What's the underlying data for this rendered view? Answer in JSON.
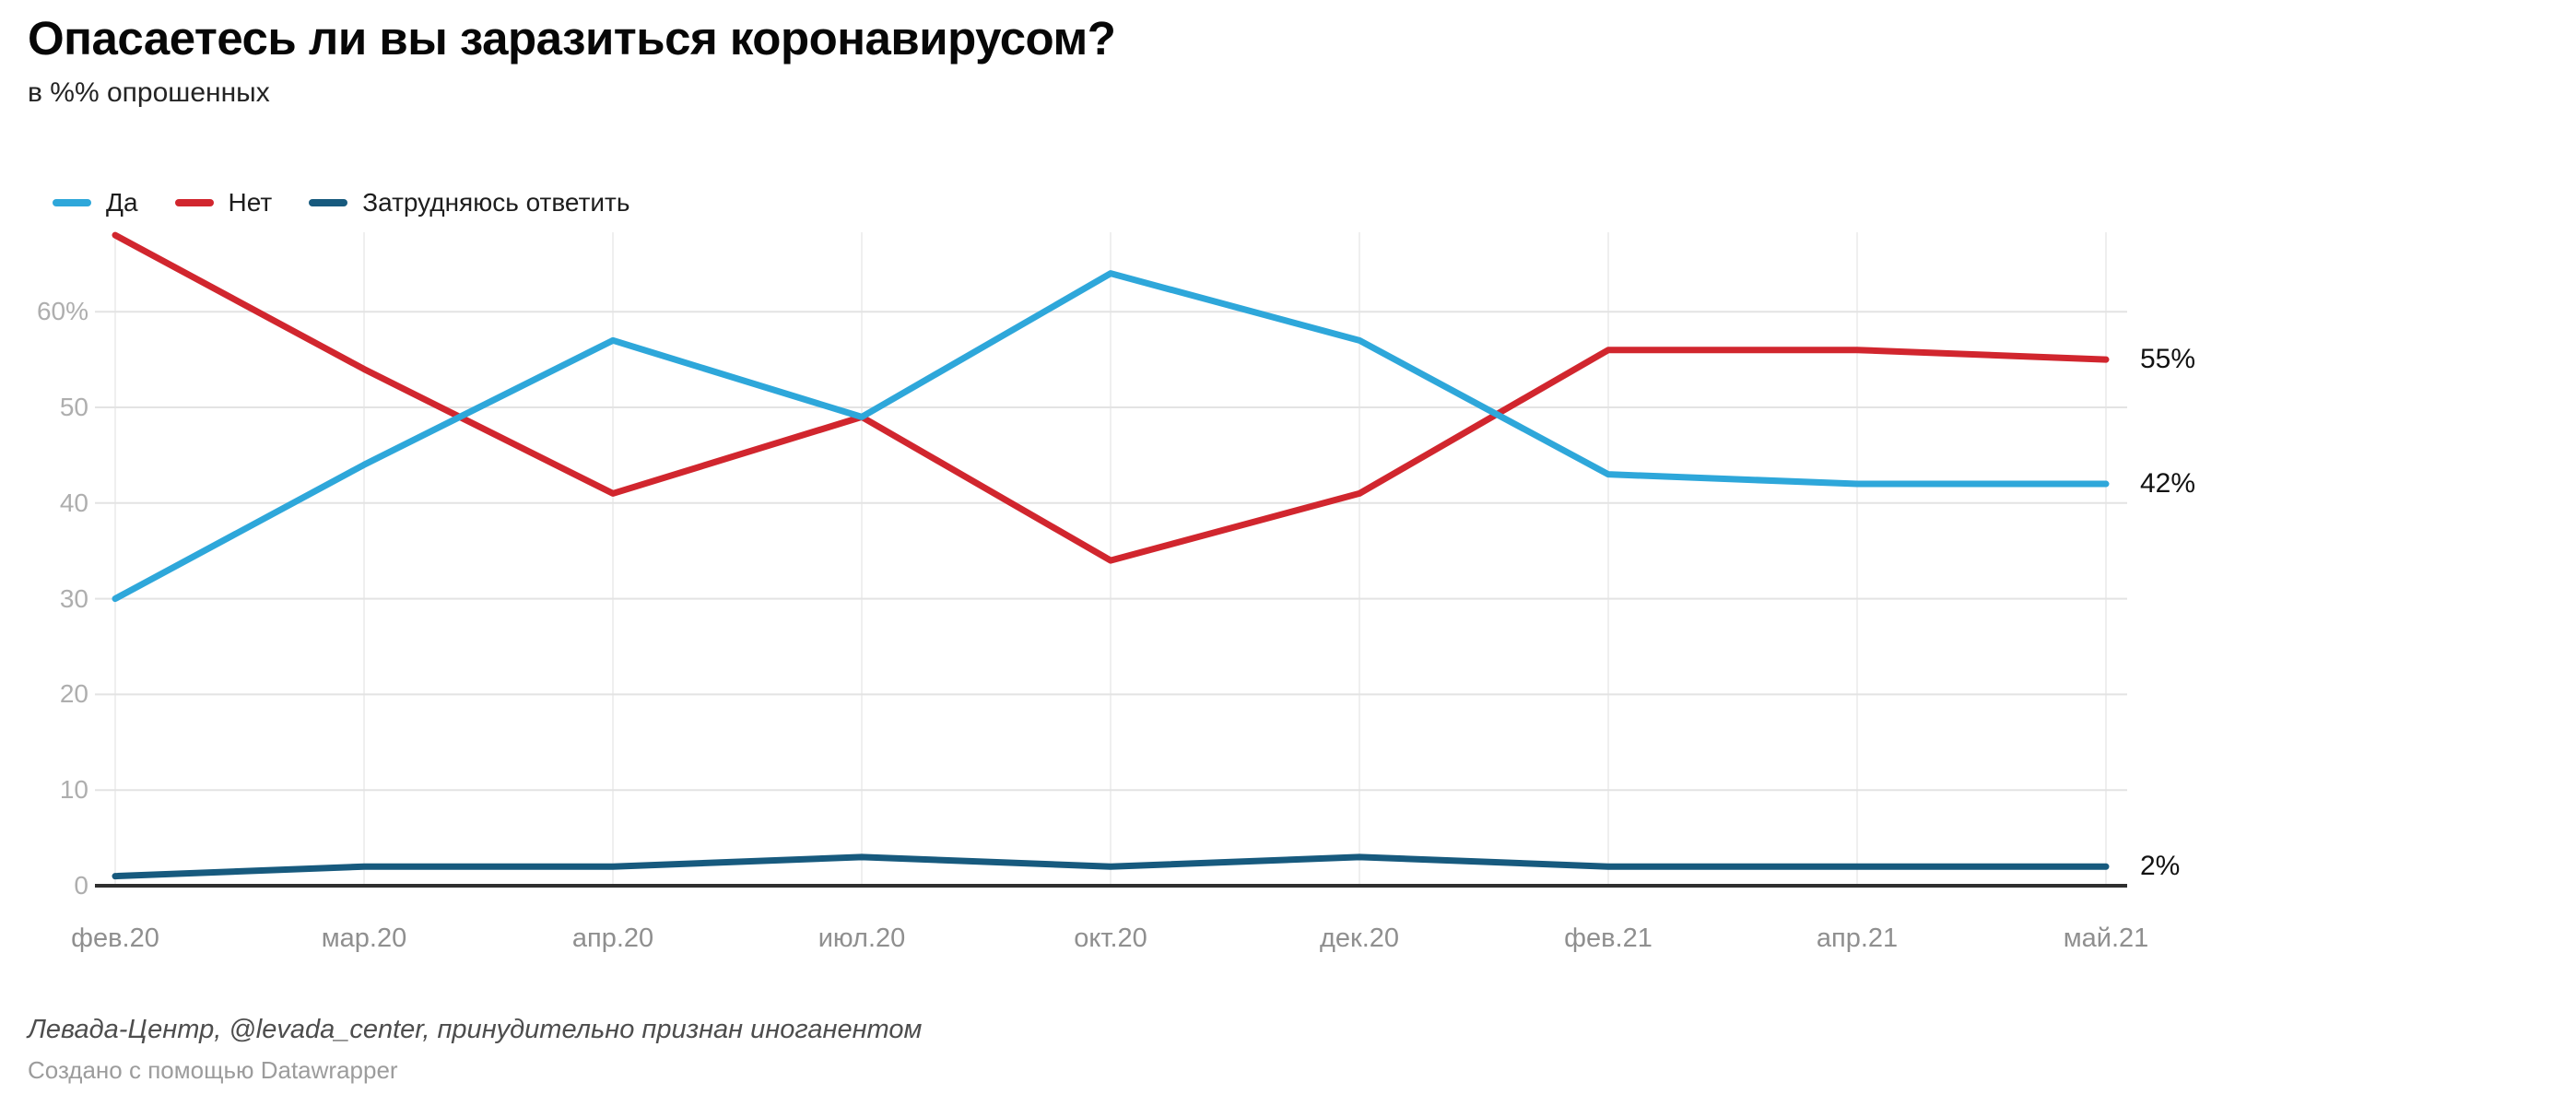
{
  "chart": {
    "title": "Опасаетесь ли вы заразиться коронавирусом?",
    "subtitle": "в %% опрошенных",
    "source_note": "Левада-Центр, @levada_center, принудительно признан иноганентом",
    "byline": "Создано с помощью Datawrapper"
  },
  "chart_data": {
    "type": "line",
    "title": "Опасаетесь ли вы заразиться коронавирусом?",
    "subtitle": "в %% опрошенных",
    "categories": [
      "фев.20",
      "мар.20",
      "апр.20",
      "июл.20",
      "окт.20",
      "дек.20",
      "фев.21",
      "апр.21",
      "май.21"
    ],
    "series": [
      {
        "name": "Да",
        "color": "#2ea7da",
        "values": [
          30,
          44,
          57,
          49,
          64,
          57,
          43,
          42,
          42
        ],
        "end_label": "42%"
      },
      {
        "name": "Нет",
        "color": "#d1262e",
        "values": [
          68,
          54,
          41,
          49,
          34,
          41,
          56,
          56,
          55
        ],
        "end_label": "55%"
      },
      {
        "name": "Затрудняюсь ответить",
        "color": "#175a7e",
        "values": [
          1,
          2,
          2,
          3,
          2,
          3,
          2,
          2,
          2
        ],
        "end_label": "2%"
      }
    ],
    "y_ticks": [
      {
        "label": "60%",
        "value": 60
      },
      {
        "label": "50",
        "value": 50
      },
      {
        "label": "40",
        "value": 40
      },
      {
        "label": "30",
        "value": 30
      },
      {
        "label": "20",
        "value": 20
      },
      {
        "label": "10",
        "value": 10
      },
      {
        "label": "0",
        "value": 0
      }
    ],
    "ylim": [
      0,
      68
    ],
    "grid": true,
    "legend_position": "top",
    "colors": {
      "grid_horizontal": "#e3e3e3",
      "grid_vertical": "#efefef",
      "axis_baseline": "#2f2f2f",
      "y_tick_text": "#aeaeae",
      "x_tick_text": "#8f8f8f",
      "end_label_text": "#121212"
    }
  }
}
